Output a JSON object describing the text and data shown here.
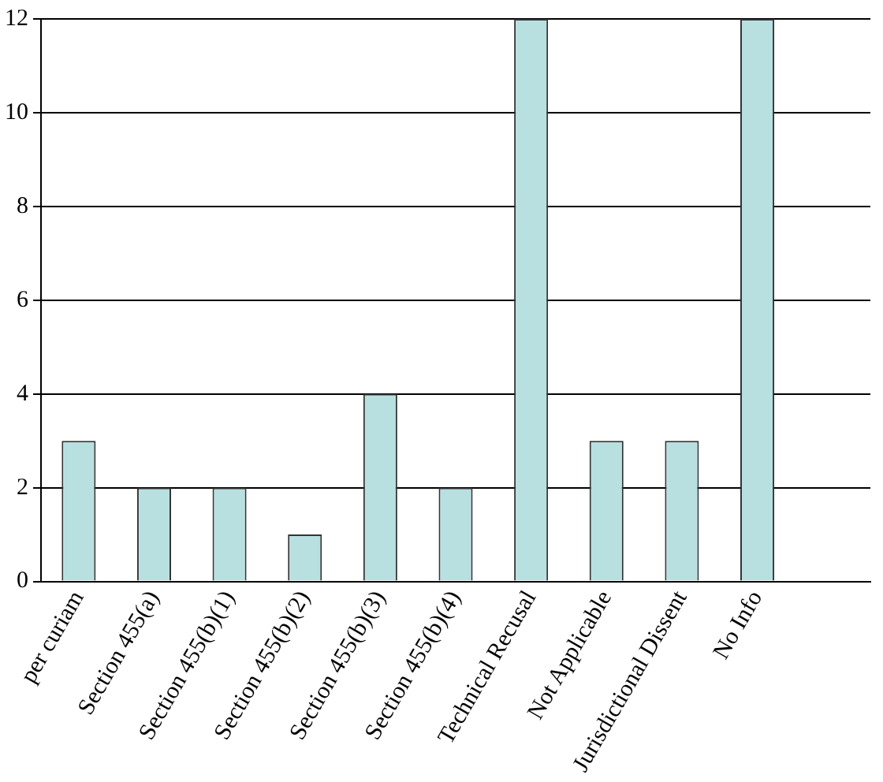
{
  "chart_data": {
    "type": "bar",
    "categories": [
      "per curiam",
      "Section 455(a)",
      "Section 455(b)(1)",
      "Section 455(b)(2)",
      "Section 455(b)(3)",
      "Section 455(b)(4)",
      "Technical Recusal",
      "Not Applicable",
      "Jurisdictional Dissent",
      "No Info",
      null
    ],
    "values": [
      3,
      2,
      2,
      1,
      4,
      2,
      12,
      3,
      3,
      12,
      null
    ],
    "color": "#b8e0e0",
    "ylim": [
      0,
      12
    ],
    "yticks": [
      0,
      2,
      4,
      6,
      8,
      10,
      12
    ],
    "grid": "y"
  }
}
